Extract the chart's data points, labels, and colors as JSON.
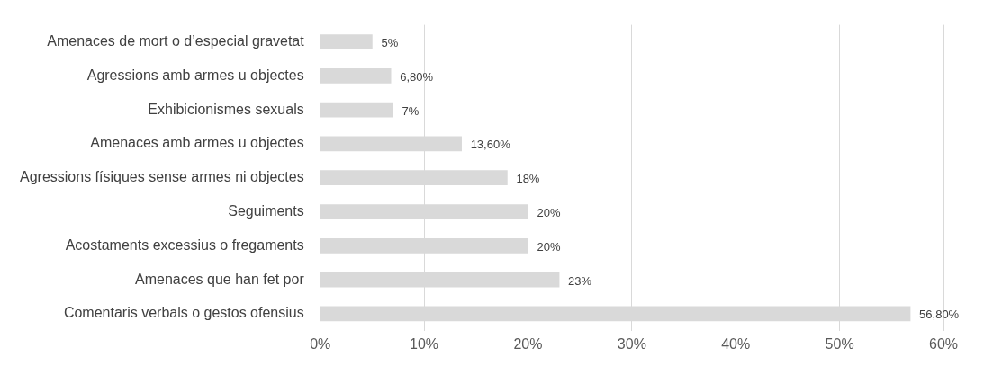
{
  "chart_data": {
    "type": "bar",
    "orientation": "horizontal",
    "categories": [
      "Amenaces de mort o d’especial gravetat",
      "Agressions amb armes u objectes",
      "Exhibicionismes sexuals",
      "Amenaces amb armes u objectes",
      "Agressions físiques sense armes ni objectes",
      "Seguiments",
      "Acostaments excessius o fregaments",
      "Amenaces que han fet por",
      "Comentaris verbals o gestos ofensius"
    ],
    "values": [
      5,
      6.8,
      7,
      13.6,
      18,
      20,
      20,
      23,
      56.8
    ],
    "value_labels": [
      "5%",
      "6,80%",
      "7%",
      "13,60%",
      "18%",
      "20%",
      "20%",
      "23%",
      "56,80%"
    ],
    "color": "#d9d9d9",
    "xlim": [
      0,
      60
    ],
    "xticks": [
      {
        "value": 0,
        "label": "0%"
      },
      {
        "value": 10,
        "label": "10%"
      },
      {
        "value": 20,
        "label": "20%"
      },
      {
        "value": 30,
        "label": "30%"
      },
      {
        "value": 40,
        "label": "40%"
      },
      {
        "value": 50,
        "label": "50%"
      },
      {
        "value": 60,
        "label": "60%"
      }
    ],
    "grid": "x",
    "legend": false
  }
}
